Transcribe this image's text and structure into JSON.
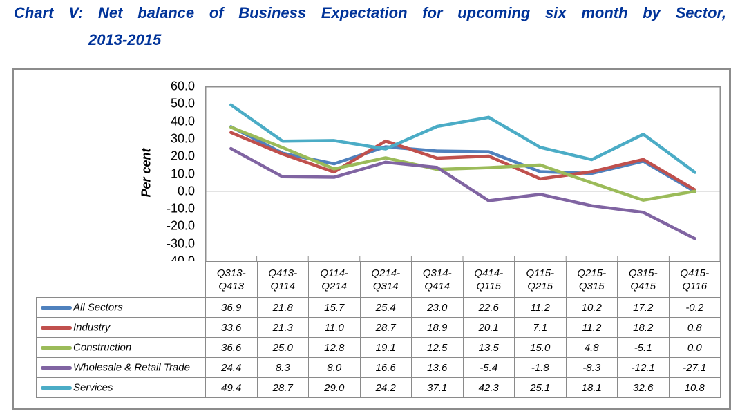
{
  "title": {
    "line1": "Chart V: Net balance of Business Expectation for upcoming six month by Sector,",
    "line2": "2013-2015"
  },
  "colors": {
    "title_text": "#003399",
    "outer_border": "#8C8C8C",
    "plot_border": "#8F8F8F",
    "table_border": "#8A8A8A"
  },
  "chart_data": {
    "type": "line",
    "title": "Chart V: Net balance of Business Expectation for upcoming six month by Sector, 2013-2015",
    "xlabel": "",
    "ylabel": "Per cent",
    "ylim": [
      -40.0,
      60.0
    ],
    "ytick_step": 10,
    "ytick_format_decimals": 1,
    "gridlines": "zero-line-only",
    "legend_position": "data-table-left",
    "data_table_shown": true,
    "categories": [
      "Q313-Q413",
      "Q413-Q114",
      "Q114-Q214",
      "Q214-Q314",
      "Q314-Q414",
      "Q414-Q115",
      "Q115-Q215",
      "Q215-Q315",
      "Q315-Q415",
      "Q415-Q116"
    ],
    "series": [
      {
        "name": "All Sectors",
        "color": "#4F81BD",
        "values": [
          36.9,
          21.8,
          15.7,
          25.4,
          23.0,
          22.6,
          11.2,
          10.2,
          17.2,
          -0.2
        ]
      },
      {
        "name": "Industry",
        "color": "#C0504D",
        "values": [
          33.6,
          21.3,
          11.0,
          28.7,
          18.9,
          20.1,
          7.1,
          11.2,
          18.2,
          0.8
        ]
      },
      {
        "name": "Construction",
        "color": "#9BBB59",
        "values": [
          36.6,
          25.0,
          12.8,
          19.1,
          12.5,
          13.5,
          15.0,
          4.8,
          -5.1,
          0.0
        ]
      },
      {
        "name": "Wholesale & Retail Trade",
        "color": "#8064A2",
        "values": [
          24.4,
          8.3,
          8.0,
          16.6,
          13.6,
          -5.4,
          -1.8,
          -8.3,
          -12.1,
          -27.1
        ]
      },
      {
        "name": "Services",
        "color": "#4BACC6",
        "values": [
          49.4,
          28.7,
          29.0,
          24.2,
          37.1,
          42.3,
          25.1,
          18.1,
          32.6,
          10.8
        ]
      }
    ]
  }
}
